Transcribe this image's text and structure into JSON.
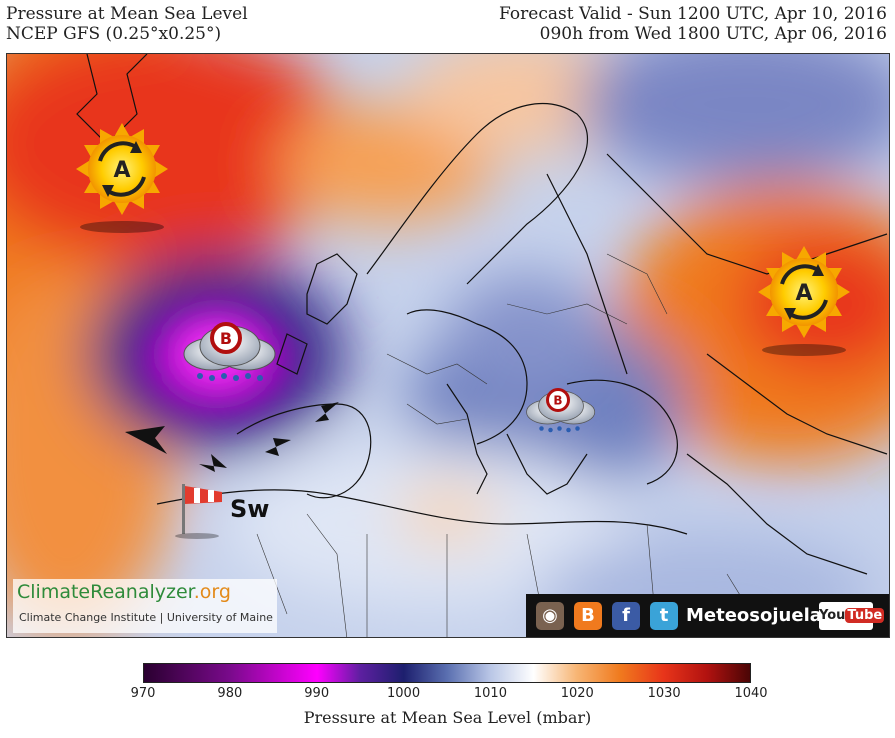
{
  "header": {
    "title": "Pressure at Mean Sea Level",
    "model": "NCEP GFS (0.25°x0.25°)",
    "valid": "Forecast Valid - Sun 1200 UTC, Apr 10, 2016",
    "lead": "090h from Wed 1800 UTC, Apr 06, 2016"
  },
  "map": {
    "high_symbol": "A",
    "low_symbol": "B",
    "wind_label": "Sw",
    "icons": [
      "high-pressure-sun-icon",
      "low-pressure-storm-icon",
      "wind-arrow-icon",
      "windsock-icon"
    ]
  },
  "logo": {
    "main": "ClimateReanalyzer",
    "suffix": ".org",
    "sub": "Climate Change Institute | University of Maine"
  },
  "social": {
    "label": "Meteosojuela",
    "youtube_you": "You",
    "youtube_tube": "Tube",
    "icons": [
      "instagram-icon",
      "blogger-icon",
      "facebook-icon",
      "twitter-icon",
      "youtube-icon"
    ]
  },
  "colorbar": {
    "title": "Pressure at Mean Sea Level (mbar)",
    "ticks": [
      "970",
      "980",
      "990",
      "1000",
      "1010",
      "1020",
      "1030",
      "1040"
    ],
    "min": 970,
    "max": 1040,
    "stops": [
      {
        "value": 970,
        "color": "#2a0030"
      },
      {
        "value": 980,
        "color": "#7a0a8c"
      },
      {
        "value": 990,
        "color": "#ff00ff"
      },
      {
        "value": 995,
        "color": "#5d1fa0"
      },
      {
        "value": 1000,
        "color": "#1d1f6e"
      },
      {
        "value": 1005,
        "color": "#5a6fb0"
      },
      {
        "value": 1010,
        "color": "#b9c6e6"
      },
      {
        "value": 1015,
        "color": "#ffffff"
      },
      {
        "value": 1020,
        "color": "#f7b574"
      },
      {
        "value": 1025,
        "color": "#f07a1e"
      },
      {
        "value": 1030,
        "color": "#e8351a"
      },
      {
        "value": 1035,
        "color": "#b21210"
      },
      {
        "value": 1040,
        "color": "#4a0505"
      }
    ]
  }
}
